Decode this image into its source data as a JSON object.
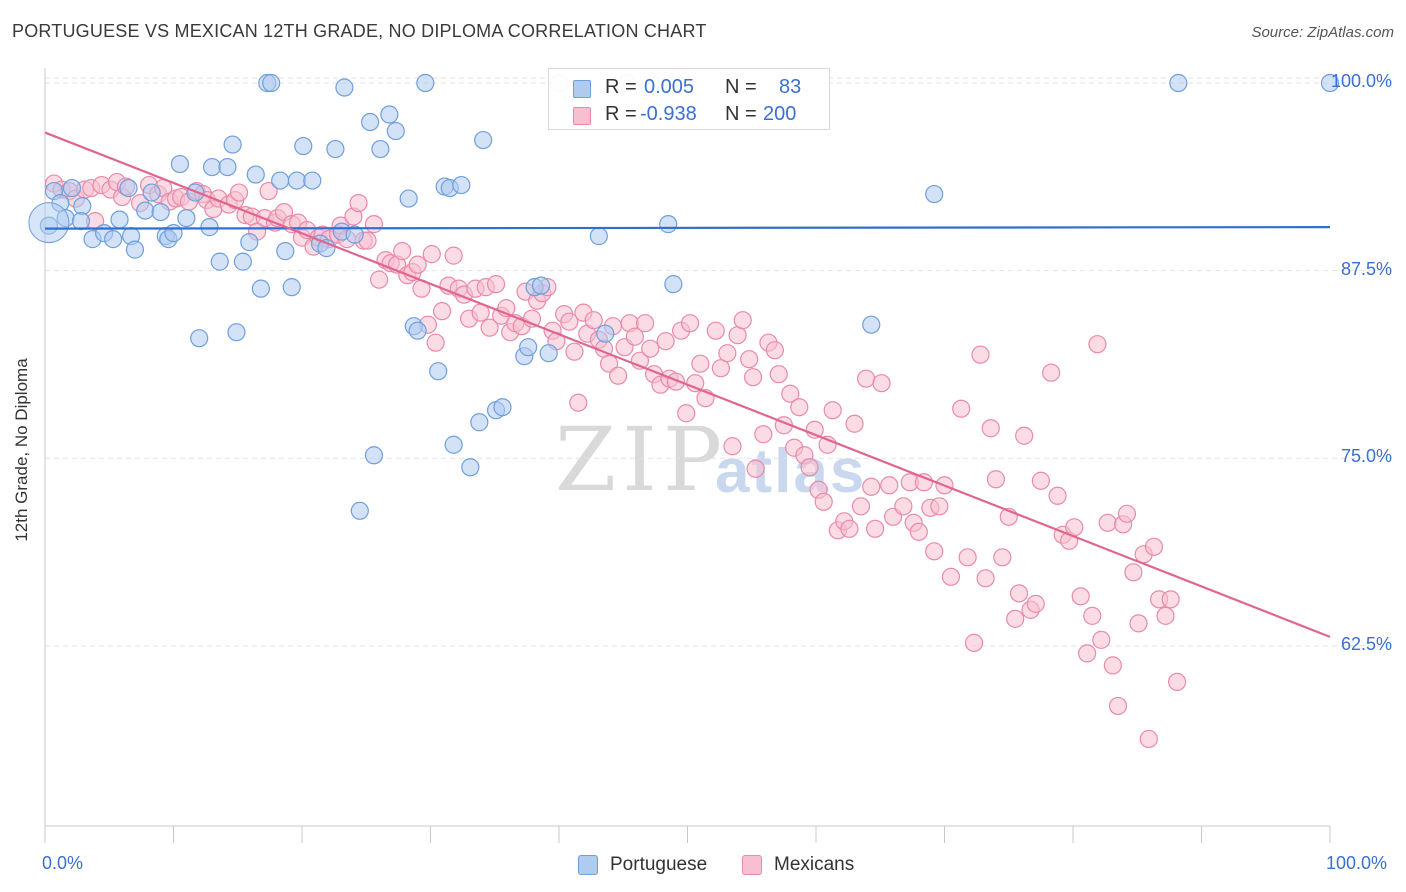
{
  "title": "PORTUGUESE VS MEXICAN 12TH GRADE, NO DIPLOMA CORRELATION CHART",
  "source": "Source: ZipAtlas.com",
  "watermark": {
    "zip": "ZIP",
    "atlas": "atlas"
  },
  "legend_top": {
    "rows": [
      {
        "r_label": "R =",
        "r_value": "0.005",
        "n_label": "N =",
        "n_value": "83"
      },
      {
        "r_label": "R =",
        "r_value": "-0.938",
        "n_label": "N =",
        "n_value": "200"
      }
    ]
  },
  "legend_bottom": {
    "items": [
      "Portuguese",
      "Mexicans"
    ]
  },
  "colors": {
    "portuguese_fill": "#aecbf0",
    "portuguese_stroke": "#6f9fdc",
    "portuguese_line": "#2f6fd0",
    "mexicans_fill": "#f7bfd0",
    "mexicans_stroke": "#e98aaa",
    "mexicans_line": "#e0658f",
    "tick_text": "#3b6fd1",
    "grid": "#e2e2e2"
  },
  "chart_data": {
    "type": "scatter",
    "title": "PORTUGUESE VS MEXICAN 12TH GRADE, NO DIPLOMA CORRELATION CHART",
    "xlabel": "",
    "ylabel": "12th Grade, No Diploma",
    "xlim": [
      0,
      100
    ],
    "ylim": [
      50.5,
      101
    ],
    "x_tick_labels": [
      "0.0%",
      "100.0%"
    ],
    "y_ticks": [
      62.5,
      75.0,
      87.5,
      100.0
    ],
    "y_tick_labels": [
      "62.5%",
      "75.0%",
      "87.5%",
      "100.0%"
    ],
    "grid": true,
    "legend_position": "top-center",
    "series": [
      {
        "name": "Portuguese",
        "trend": {
          "x": [
            0,
            100
          ],
          "y": [
            90.3,
            90.4
          ]
        },
        "points": [
          [
            0.3,
            90.5
          ],
          [
            0.7,
            92.8
          ],
          [
            1.2,
            92.0
          ],
          [
            1.6,
            91.0
          ],
          [
            2.1,
            93.0
          ],
          [
            2.9,
            91.8
          ],
          [
            2.8,
            90.8
          ],
          [
            3.7,
            89.6
          ],
          [
            4.6,
            90.0
          ],
          [
            5.3,
            89.6
          ],
          [
            5.8,
            90.9
          ],
          [
            6.7,
            89.8
          ],
          [
            6.5,
            93.0
          ],
          [
            7.0,
            88.9
          ],
          [
            7.8,
            91.5
          ],
          [
            8.3,
            92.7
          ],
          [
            9.0,
            91.4
          ],
          [
            9.4,
            89.8
          ],
          [
            9.6,
            89.6
          ],
          [
            10.0,
            90.0
          ],
          [
            10.5,
            94.6
          ],
          [
            11.0,
            91.0
          ],
          [
            11.7,
            92.7
          ],
          [
            12.0,
            83.0
          ],
          [
            12.8,
            90.4
          ],
          [
            13.0,
            94.4
          ],
          [
            13.6,
            88.1
          ],
          [
            14.2,
            94.4
          ],
          [
            14.6,
            95.9
          ],
          [
            14.9,
            83.4
          ],
          [
            15.4,
            88.1
          ],
          [
            15.9,
            89.4
          ],
          [
            16.4,
            93.9
          ],
          [
            16.8,
            86.3
          ],
          [
            17.3,
            100.0
          ],
          [
            17.6,
            100.0
          ],
          [
            18.3,
            93.5
          ],
          [
            18.7,
            88.8
          ],
          [
            19.2,
            86.4
          ],
          [
            19.6,
            93.5
          ],
          [
            20.1,
            95.8
          ],
          [
            20.8,
            93.5
          ],
          [
            21.4,
            89.3
          ],
          [
            21.9,
            89.0
          ],
          [
            22.6,
            95.6
          ],
          [
            23.1,
            90.1
          ],
          [
            23.3,
            99.7
          ],
          [
            24.1,
            89.9
          ],
          [
            24.5,
            71.5
          ],
          [
            25.3,
            97.4
          ],
          [
            25.6,
            75.2
          ],
          [
            26.1,
            95.6
          ],
          [
            26.8,
            97.9
          ],
          [
            27.3,
            96.8
          ],
          [
            28.3,
            92.3
          ],
          [
            28.7,
            83.8
          ],
          [
            29.0,
            83.5
          ],
          [
            29.6,
            100.0
          ],
          [
            30.6,
            80.8
          ],
          [
            31.1,
            93.1
          ],
          [
            31.5,
            93.0
          ],
          [
            31.8,
            75.9
          ],
          [
            32.4,
            93.2
          ],
          [
            33.1,
            74.4
          ],
          [
            33.8,
            77.4
          ],
          [
            34.1,
            96.2
          ],
          [
            35.1,
            78.2
          ],
          [
            35.6,
            78.4
          ],
          [
            37.3,
            81.8
          ],
          [
            37.6,
            82.4
          ],
          [
            38.1,
            86.4
          ],
          [
            38.6,
            86.5
          ],
          [
            39.2,
            82.0
          ],
          [
            40.0,
            100.0
          ],
          [
            43.1,
            89.8
          ],
          [
            43.6,
            83.3
          ],
          [
            45.3,
            100.0
          ],
          [
            48.5,
            90.6
          ],
          [
            48.9,
            86.6
          ],
          [
            64.3,
            83.9
          ],
          [
            69.2,
            92.6
          ],
          [
            88.2,
            100.0
          ],
          [
            100.0,
            100.0
          ]
        ]
      },
      {
        "name": "Mexicans",
        "trend": {
          "x": [
            0,
            100
          ],
          "y": [
            96.7,
            63.1
          ]
        },
        "points": [
          [
            0.7,
            93.3
          ],
          [
            1.3,
            92.9
          ],
          [
            1.9,
            92.8
          ],
          [
            2.4,
            92.3
          ],
          [
            3.1,
            92.9
          ],
          [
            3.6,
            93.0
          ],
          [
            3.9,
            90.8
          ],
          [
            4.4,
            93.2
          ],
          [
            5.1,
            92.9
          ],
          [
            5.6,
            93.4
          ],
          [
            6.0,
            92.4
          ],
          [
            6.3,
            93.1
          ],
          [
            7.4,
            92.0
          ],
          [
            8.1,
            93.2
          ],
          [
            8.8,
            92.6
          ],
          [
            9.2,
            93.0
          ],
          [
            9.7,
            92.1
          ],
          [
            10.2,
            92.3
          ],
          [
            10.6,
            92.4
          ],
          [
            11.2,
            92.1
          ],
          [
            11.8,
            92.8
          ],
          [
            12.3,
            92.6
          ],
          [
            12.6,
            92.2
          ],
          [
            13.1,
            91.6
          ],
          [
            13.5,
            92.3
          ],
          [
            14.3,
            91.9
          ],
          [
            14.8,
            92.2
          ],
          [
            15.1,
            92.7
          ],
          [
            15.6,
            91.2
          ],
          [
            16.1,
            91.1
          ],
          [
            16.5,
            90.1
          ],
          [
            17.1,
            91.0
          ],
          [
            17.4,
            92.8
          ],
          [
            17.9,
            90.7
          ],
          [
            18.1,
            91.0
          ],
          [
            18.6,
            91.4
          ],
          [
            19.2,
            90.6
          ],
          [
            19.7,
            90.7
          ],
          [
            20.0,
            89.7
          ],
          [
            20.4,
            90.2
          ],
          [
            20.9,
            89.1
          ],
          [
            21.3,
            89.7
          ],
          [
            21.6,
            89.9
          ],
          [
            22.1,
            89.6
          ],
          [
            22.8,
            89.9
          ],
          [
            23.0,
            90.5
          ],
          [
            23.5,
            89.6
          ],
          [
            24.0,
            91.1
          ],
          [
            24.4,
            92.0
          ],
          [
            24.8,
            89.5
          ],
          [
            25.1,
            89.5
          ],
          [
            25.6,
            90.6
          ],
          [
            26.0,
            86.9
          ],
          [
            26.5,
            88.2
          ],
          [
            26.9,
            88.0
          ],
          [
            27.4,
            87.9
          ],
          [
            27.8,
            88.8
          ],
          [
            28.2,
            87.2
          ],
          [
            28.6,
            87.4
          ],
          [
            29.0,
            87.9
          ],
          [
            29.3,
            86.3
          ],
          [
            29.8,
            83.9
          ],
          [
            30.1,
            88.6
          ],
          [
            30.4,
            82.7
          ],
          [
            30.9,
            84.8
          ],
          [
            31.4,
            86.5
          ],
          [
            31.8,
            88.5
          ],
          [
            32.2,
            86.3
          ],
          [
            32.6,
            85.9
          ],
          [
            33.0,
            84.3
          ],
          [
            33.5,
            86.3
          ],
          [
            33.9,
            84.7
          ],
          [
            34.3,
            86.4
          ],
          [
            34.6,
            83.7
          ],
          [
            35.1,
            86.6
          ],
          [
            35.5,
            84.5
          ],
          [
            35.9,
            85.0
          ],
          [
            36.2,
            83.4
          ],
          [
            36.6,
            84.0
          ],
          [
            37.1,
            83.8
          ],
          [
            37.4,
            86.1
          ],
          [
            37.9,
            84.3
          ],
          [
            38.3,
            85.5
          ],
          [
            38.7,
            86.0
          ],
          [
            39.1,
            86.4
          ],
          [
            39.5,
            83.5
          ],
          [
            39.8,
            82.8
          ],
          [
            40.4,
            84.6
          ],
          [
            40.8,
            84.1
          ],
          [
            41.2,
            82.1
          ],
          [
            41.5,
            78.7
          ],
          [
            41.9,
            84.7
          ],
          [
            42.2,
            83.3
          ],
          [
            42.7,
            84.2
          ],
          [
            43.1,
            82.9
          ],
          [
            43.5,
            82.3
          ],
          [
            43.9,
            81.3
          ],
          [
            44.2,
            83.8
          ],
          [
            44.6,
            80.5
          ],
          [
            45.1,
            82.4
          ],
          [
            45.5,
            84.0
          ],
          [
            45.9,
            83.1
          ],
          [
            46.3,
            81.5
          ],
          [
            46.7,
            84.0
          ],
          [
            47.1,
            82.3
          ],
          [
            47.4,
            80.6
          ],
          [
            47.9,
            79.9
          ],
          [
            48.3,
            82.8
          ],
          [
            48.6,
            80.3
          ],
          [
            49.1,
            80.1
          ],
          [
            49.5,
            83.5
          ],
          [
            49.9,
            78.0
          ],
          [
            50.2,
            84.0
          ],
          [
            50.6,
            80.0
          ],
          [
            51.0,
            81.3
          ],
          [
            51.4,
            79.0
          ],
          [
            52.2,
            83.5
          ],
          [
            52.6,
            81.0
          ],
          [
            53.1,
            82.0
          ],
          [
            53.5,
            75.8
          ],
          [
            53.9,
            83.2
          ],
          [
            54.3,
            84.2
          ],
          [
            54.8,
            81.6
          ],
          [
            55.1,
            80.4
          ],
          [
            55.3,
            74.3
          ],
          [
            55.9,
            76.6
          ],
          [
            56.3,
            82.7
          ],
          [
            56.8,
            82.2
          ],
          [
            57.1,
            80.6
          ],
          [
            57.5,
            77.2
          ],
          [
            58.0,
            79.3
          ],
          [
            58.3,
            75.7
          ],
          [
            58.7,
            78.4
          ],
          [
            59.1,
            75.2
          ],
          [
            59.5,
            74.4
          ],
          [
            59.9,
            76.9
          ],
          [
            60.2,
            72.9
          ],
          [
            60.6,
            72.1
          ],
          [
            60.9,
            75.9
          ],
          [
            61.3,
            78.2
          ],
          [
            61.7,
            70.2
          ],
          [
            62.2,
            70.8
          ],
          [
            62.6,
            70.3
          ],
          [
            63.0,
            77.3
          ],
          [
            63.5,
            71.8
          ],
          [
            63.9,
            80.3
          ],
          [
            64.3,
            73.1
          ],
          [
            64.6,
            70.3
          ],
          [
            65.1,
            80.0
          ],
          [
            65.7,
            73.2
          ],
          [
            66.0,
            71.1
          ],
          [
            66.8,
            71.8
          ],
          [
            67.3,
            73.4
          ],
          [
            67.6,
            70.7
          ],
          [
            68.0,
            70.1
          ],
          [
            68.4,
            73.4
          ],
          [
            68.9,
            71.7
          ],
          [
            69.2,
            68.8
          ],
          [
            69.6,
            71.8
          ],
          [
            70.0,
            73.2
          ],
          [
            70.5,
            67.1
          ],
          [
            71.3,
            78.3
          ],
          [
            71.8,
            68.4
          ],
          [
            72.3,
            62.7
          ],
          [
            72.8,
            81.9
          ],
          [
            73.2,
            67.0
          ],
          [
            73.6,
            77.0
          ],
          [
            74.0,
            73.6
          ],
          [
            74.5,
            68.4
          ],
          [
            75.0,
            71.1
          ],
          [
            75.5,
            64.3
          ],
          [
            75.8,
            66.0
          ],
          [
            76.2,
            76.5
          ],
          [
            76.7,
            64.9
          ],
          [
            77.1,
            65.3
          ],
          [
            77.5,
            73.5
          ],
          [
            78.3,
            80.7
          ],
          [
            78.8,
            72.5
          ],
          [
            79.2,
            69.9
          ],
          [
            79.7,
            69.5
          ],
          [
            80.1,
            70.4
          ],
          [
            80.6,
            65.8
          ],
          [
            81.1,
            62.0
          ],
          [
            81.5,
            64.5
          ],
          [
            81.9,
            82.6
          ],
          [
            82.2,
            62.9
          ],
          [
            82.7,
            70.7
          ],
          [
            83.1,
            61.2
          ],
          [
            83.5,
            58.5
          ],
          [
            83.9,
            70.6
          ],
          [
            84.2,
            71.3
          ],
          [
            84.7,
            67.4
          ],
          [
            85.1,
            64.0
          ],
          [
            85.5,
            68.6
          ],
          [
            85.9,
            56.3
          ],
          [
            86.3,
            69.1
          ],
          [
            86.7,
            65.6
          ],
          [
            87.2,
            64.5
          ],
          [
            87.6,
            65.6
          ],
          [
            88.1,
            60.1
          ]
        ]
      }
    ]
  }
}
